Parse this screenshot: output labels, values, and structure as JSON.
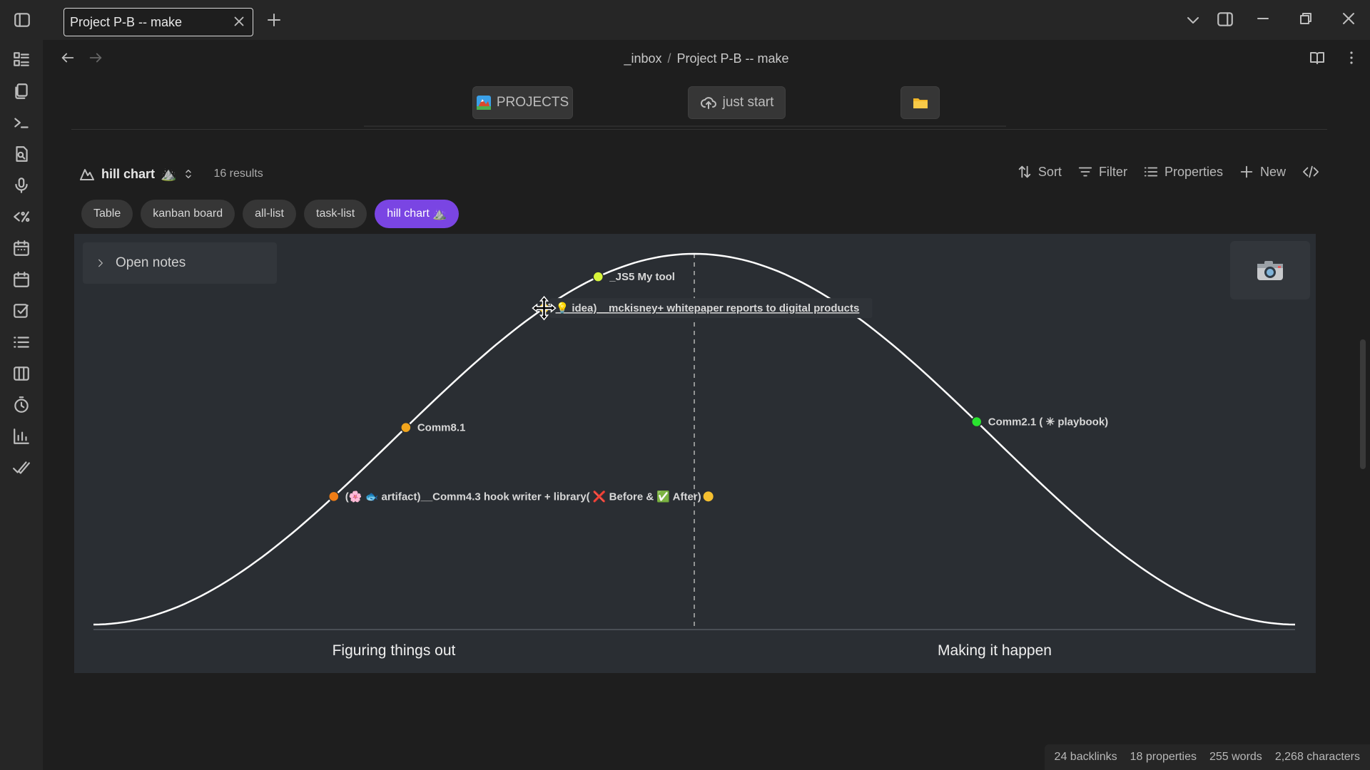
{
  "window": {
    "tab_title": "Project P-B -- make"
  },
  "nav": {
    "breadcrumb_parent": "_inbox",
    "breadcrumb_separator": "/",
    "breadcrumb_current": "Project P-B -- make"
  },
  "toolbar": {
    "projects_label": "PROJECTS",
    "just_start_label": "just start"
  },
  "view": {
    "title": "hill chart",
    "title_emoji": "⛰️",
    "results": "16 results",
    "actions": {
      "sort": "Sort",
      "filter": "Filter",
      "properties": "Properties",
      "new": "New"
    },
    "pills": [
      "Table",
      "kanban board",
      "all-list",
      "task-list",
      "hill chart"
    ],
    "active_pill": "hill chart"
  },
  "hill": {
    "open_notes_label": "Open notes",
    "left_phase": "Figuring things out",
    "right_phase": "Making it happen",
    "points": [
      {
        "label": "_JS5 My tool",
        "progress": 0.42,
        "color": "#d7f53a"
      },
      {
        "label": "💡 idea)__mckisney+ whitepaper reports to digital products",
        "progress": 0.375,
        "color": "#f5c52a",
        "hovered": true
      },
      {
        "label": "Comm8.1",
        "progress": 0.26,
        "color": "#f2a51c"
      },
      {
        "label": "(🌸 🐟 artifact)__Comm4.3 hook writer + library( ❌ Before & ✅ After)",
        "progress": 0.2,
        "color": "#f07d16",
        "end_dot_color": "#f5c030"
      },
      {
        "label": "Comm2.1 ( ✳ playbook)",
        "progress": 0.735,
        "color": "#29e32f"
      }
    ]
  },
  "status": {
    "backlinks": "24 backlinks",
    "properties": "18 properties",
    "words": "255 words",
    "characters": "2,268 characters"
  }
}
